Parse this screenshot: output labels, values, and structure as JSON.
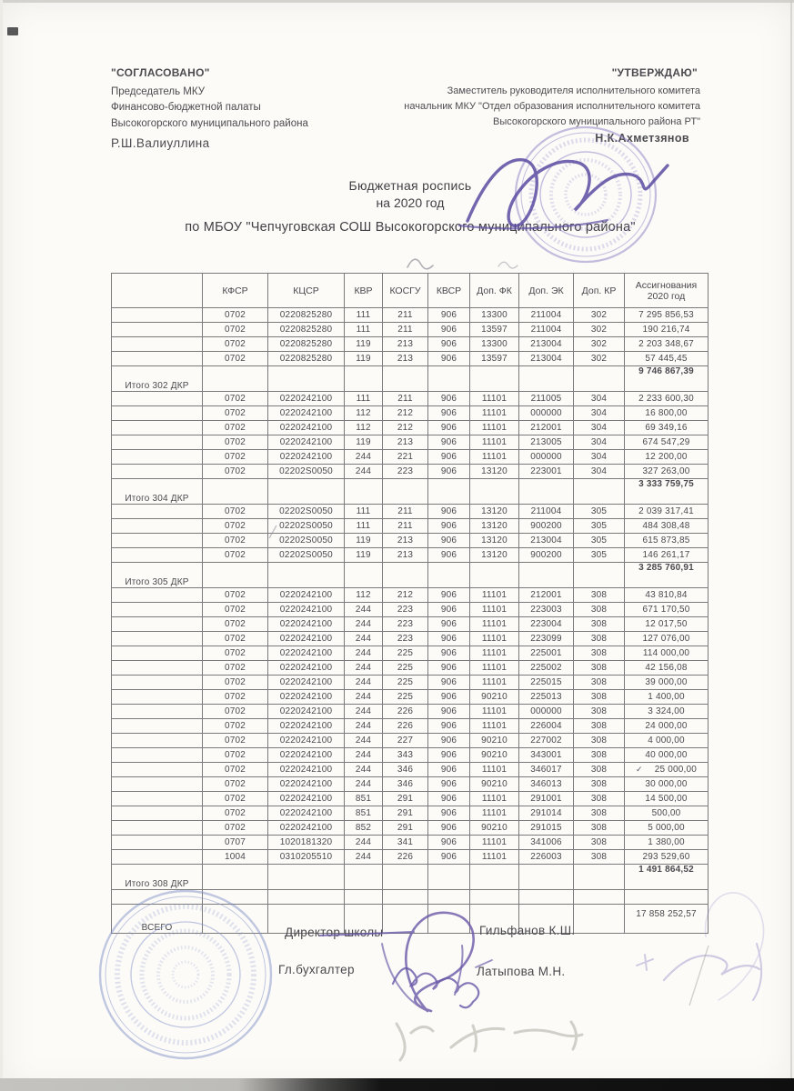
{
  "approvals": {
    "left": {
      "title": "\"СОГЛАСОВАНО\"",
      "line1": "Председатель МКУ",
      "line2": "Финансово-бюджетной палаты",
      "line3": "Высокогорского муниципального района",
      "name": "Р.Ш.Валиуллина"
    },
    "right": {
      "title": "\"УТВЕРЖДАЮ\"",
      "line1": "Заместитель руководителя исполнительного  комитета",
      "line2": "начальник МКУ \"Отдел образования исполнительного комитета",
      "line3": "Высокогорского муниципального района РТ\"",
      "name": "Н.К.Ахметзянов"
    }
  },
  "title": {
    "line1": "Бюджетная роспись",
    "line2": "на 2020  год",
    "line3": "по МБОУ \"Чепчуговская СОШ Высокогорского муниципального района\""
  },
  "table": {
    "headers": [
      "",
      "КФСР",
      "КЦСР",
      "КВР",
      "КОСГУ",
      "КВСР",
      "Доп. ФК",
      "Доп. ЭК",
      "Доп. КР",
      "Ассигнования 2020 год"
    ],
    "rows": [
      {
        "type": "data",
        "cells": [
          "0702",
          "0220825280",
          "111",
          "211",
          "906",
          "13300",
          "211004",
          "302"
        ],
        "amount": "7 295 856,53"
      },
      {
        "type": "data",
        "cells": [
          "0702",
          "0220825280",
          "111",
          "211",
          "906",
          "13597",
          "211004",
          "302"
        ],
        "amount": "190 216,74"
      },
      {
        "type": "data",
        "cells": [
          "0702",
          "0220825280",
          "119",
          "213",
          "906",
          "13300",
          "213004",
          "302"
        ],
        "amount": "2 203 348,67"
      },
      {
        "type": "data",
        "cells": [
          "0702",
          "0220825280",
          "119",
          "213",
          "906",
          "13597",
          "213004",
          "302"
        ],
        "amount": "57 445,45"
      },
      {
        "type": "total",
        "label": "Итого 302 ДКР",
        "amount": "9 746 867,39"
      },
      {
        "type": "data",
        "cells": [
          "0702",
          "0220242100",
          "111",
          "211",
          "906",
          "11101",
          "211005",
          "304"
        ],
        "amount": "2 233 600,30"
      },
      {
        "type": "data",
        "cells": [
          "0702",
          "0220242100",
          "112",
          "212",
          "906",
          "11101",
          "000000",
          "304"
        ],
        "amount": "16 800,00"
      },
      {
        "type": "data",
        "cells": [
          "0702",
          "0220242100",
          "112",
          "212",
          "906",
          "11101",
          "212001",
          "304"
        ],
        "amount": "69 349,16"
      },
      {
        "type": "data",
        "cells": [
          "0702",
          "0220242100",
          "119",
          "213",
          "906",
          "11101",
          "213005",
          "304"
        ],
        "amount": "674 547,29"
      },
      {
        "type": "data",
        "cells": [
          "0702",
          "0220242100",
          "244",
          "221",
          "906",
          "11101",
          "000000",
          "304"
        ],
        "amount": "12 200,00"
      },
      {
        "type": "data",
        "cells": [
          "0702",
          "02202S0050",
          "244",
          "223",
          "906",
          "13120",
          "223001",
          "304"
        ],
        "amount": "327 263,00"
      },
      {
        "type": "total",
        "label": "Итого 304 ДКР",
        "amount": "3 333 759,75"
      },
      {
        "type": "data",
        "cells": [
          "0702",
          "02202S0050",
          "111",
          "211",
          "906",
          "13120",
          "211004",
          "305"
        ],
        "amount": "2 039 317,41"
      },
      {
        "type": "data",
        "cells": [
          "0702",
          "02202S0050",
          "111",
          "211",
          "906",
          "13120",
          "900200",
          "305"
        ],
        "amount": "484 308,48"
      },
      {
        "type": "data",
        "cells": [
          "0702",
          "02202S0050",
          "119",
          "213",
          "906",
          "13120",
          "213004",
          "305"
        ],
        "amount": "615 873,85"
      },
      {
        "type": "data",
        "cells": [
          "0702",
          "02202S0050",
          "119",
          "213",
          "906",
          "13120",
          "900200",
          "305"
        ],
        "amount": "146 261,17"
      },
      {
        "type": "total",
        "label": "Итого 305 ДКР",
        "amount": "3 285 760,91"
      },
      {
        "type": "data",
        "cells": [
          "0702",
          "0220242100",
          "112",
          "212",
          "906",
          "11101",
          "212001",
          "308"
        ],
        "amount": "43 810,84"
      },
      {
        "type": "data",
        "cells": [
          "0702",
          "0220242100",
          "244",
          "223",
          "906",
          "11101",
          "223003",
          "308"
        ],
        "amount": "671 170,50"
      },
      {
        "type": "data",
        "cells": [
          "0702",
          "0220242100",
          "244",
          "223",
          "906",
          "11101",
          "223004",
          "308"
        ],
        "amount": "12 017,50"
      },
      {
        "type": "data",
        "cells": [
          "0702",
          "0220242100",
          "244",
          "223",
          "906",
          "11101",
          "223099",
          "308"
        ],
        "amount": "127 076,00"
      },
      {
        "type": "data",
        "cells": [
          "0702",
          "0220242100",
          "244",
          "225",
          "906",
          "11101",
          "225001",
          "308"
        ],
        "amount": "114 000,00"
      },
      {
        "type": "data",
        "cells": [
          "0702",
          "0220242100",
          "244",
          "225",
          "906",
          "11101",
          "225002",
          "308"
        ],
        "amount": "42 156,08"
      },
      {
        "type": "data",
        "cells": [
          "0702",
          "0220242100",
          "244",
          "225",
          "906",
          "11101",
          "225015",
          "308"
        ],
        "amount": "39 000,00"
      },
      {
        "type": "data",
        "cells": [
          "0702",
          "0220242100",
          "244",
          "225",
          "906",
          "90210",
          "225013",
          "308"
        ],
        "amount": "1 400,00"
      },
      {
        "type": "data",
        "cells": [
          "0702",
          "0220242100",
          "244",
          "226",
          "906",
          "11101",
          "000000",
          "308"
        ],
        "amount": "3 324,00"
      },
      {
        "type": "data",
        "cells": [
          "0702",
          "0220242100",
          "244",
          "226",
          "906",
          "11101",
          "226004",
          "308"
        ],
        "amount": "24 000,00"
      },
      {
        "type": "data",
        "cells": [
          "0702",
          "0220242100",
          "244",
          "227",
          "906",
          "90210",
          "227002",
          "308"
        ],
        "amount": "4 000,00"
      },
      {
        "type": "data",
        "cells": [
          "0702",
          "0220242100",
          "244",
          "343",
          "906",
          "90210",
          "343001",
          "308"
        ],
        "amount": "40 000,00"
      },
      {
        "type": "data",
        "cells": [
          "0702",
          "0220242100",
          "244",
          "346",
          "906",
          "11101",
          "346017",
          "308"
        ],
        "amount": "25 000,00",
        "check": true
      },
      {
        "type": "data",
        "cells": [
          "0702",
          "0220242100",
          "244",
          "346",
          "906",
          "90210",
          "346013",
          "308"
        ],
        "amount": "30 000,00"
      },
      {
        "type": "data",
        "cells": [
          "0702",
          "0220242100",
          "851",
          "291",
          "906",
          "11101",
          "291001",
          "308"
        ],
        "amount": "14 500,00"
      },
      {
        "type": "data",
        "cells": [
          "0702",
          "0220242100",
          "851",
          "291",
          "906",
          "11101",
          "291014",
          "308"
        ],
        "amount": "500,00"
      },
      {
        "type": "data",
        "cells": [
          "0702",
          "0220242100",
          "852",
          "291",
          "906",
          "90210",
          "291015",
          "308"
        ],
        "amount": "5 000,00"
      },
      {
        "type": "data",
        "cells": [
          "0707",
          "1020181320",
          "244",
          "341",
          "906",
          "11101",
          "341006",
          "308"
        ],
        "amount": "1 380,00"
      },
      {
        "type": "data",
        "cells": [
          "1004",
          "0310205510",
          "244",
          "226",
          "906",
          "11101",
          "226003",
          "308"
        ],
        "amount": "293 529,60"
      },
      {
        "type": "total",
        "label": "Итого 308 ДКР",
        "amount": "1 491 864,52"
      },
      {
        "type": "empty"
      },
      {
        "type": "grand",
        "label": "ВСЕГО",
        "amount": "17 858 252,57"
      }
    ]
  },
  "signatures": {
    "director_label": "Директор школы",
    "director_name": "Гильфанов К.Ш.",
    "accountant_label": "Гл.бухгалтер",
    "accountant_name": "Латыпова М.Н."
  },
  "annotations": {
    "checkmark": "✓"
  },
  "colors": {
    "stamp_purple": "#7d6cb8",
    "stamp_blue": "#7e8ec6",
    "ink": "#47474b",
    "pencil": "#c6c5bd"
  }
}
